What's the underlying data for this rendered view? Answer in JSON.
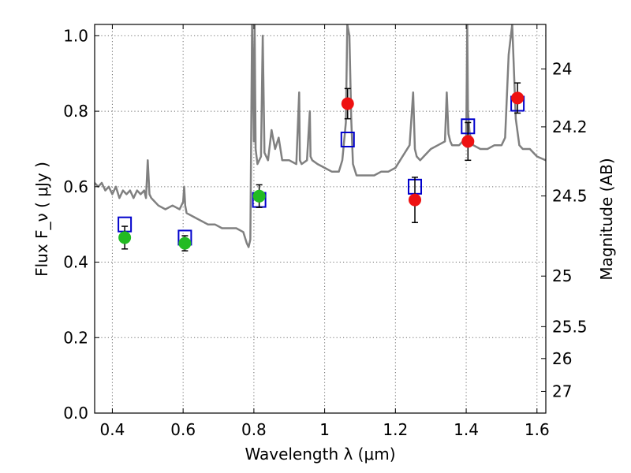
{
  "chart_data": {
    "type": "scatter",
    "title": "",
    "xlabel": "Wavelength  λ (μm)",
    "ylabel": "Flux  F_ν  ( μJy )",
    "y2label": "Magnitude (AB)",
    "xlim": [
      0.35,
      1.625
    ],
    "ylim": [
      0.0,
      1.03
    ],
    "x_ticks": [
      0.4,
      0.6,
      0.8,
      1.0,
      1.2,
      1.4,
      1.6
    ],
    "x_tick_labels": [
      "0.4",
      "0.6",
      "0.8",
      "1",
      "1.2",
      "1.4",
      "1.6"
    ],
    "y_ticks": [
      0.0,
      0.2,
      0.4,
      0.6,
      0.8,
      1.0
    ],
    "y_tick_labels": [
      "0.0",
      "0.2",
      "0.4",
      "0.6",
      "0.8",
      "1.0"
    ],
    "y2_ticks": [
      24,
      24.2,
      24.5,
      25,
      25.5,
      26,
      27
    ],
    "y2_tick_labels": [
      "24",
      "24.2",
      "24.5",
      "25",
      "25.5",
      "26",
      "27"
    ],
    "grid": true,
    "legend": "none",
    "colors": {
      "model": "#808080",
      "model_photometry": "#0000cc",
      "optical_obs": "#22bb22",
      "nir_obs": "#ee1111",
      "error_bar": "#000000"
    },
    "series": [
      {
        "kind": "line",
        "color_key": "model",
        "x": [
          0.35,
          0.36,
          0.37,
          0.38,
          0.39,
          0.4,
          0.41,
          0.42,
          0.43,
          0.44,
          0.45,
          0.46,
          0.47,
          0.48,
          0.49,
          0.495,
          0.5,
          0.505,
          0.51,
          0.53,
          0.55,
          0.57,
          0.59,
          0.6,
          0.603,
          0.606,
          0.61,
          0.63,
          0.65,
          0.67,
          0.69,
          0.71,
          0.73,
          0.75,
          0.77,
          0.78,
          0.785,
          0.79,
          0.795,
          0.8,
          0.802,
          0.805,
          0.81,
          0.82,
          0.825,
          0.83,
          0.84,
          0.85,
          0.86,
          0.87,
          0.88,
          0.9,
          0.92,
          0.928,
          0.93,
          0.935,
          0.95,
          0.958,
          0.96,
          0.965,
          0.98,
          1.0,
          1.02,
          1.04,
          1.05,
          1.06,
          1.064,
          1.07,
          1.075,
          1.08,
          1.09,
          1.1,
          1.12,
          1.14,
          1.16,
          1.18,
          1.2,
          1.22,
          1.24,
          1.25,
          1.255,
          1.26,
          1.27,
          1.28,
          1.3,
          1.32,
          1.34,
          1.345,
          1.35,
          1.355,
          1.36,
          1.38,
          1.39,
          1.4,
          1.403,
          1.405,
          1.41,
          1.42,
          1.44,
          1.46,
          1.48,
          1.5,
          1.51,
          1.52,
          1.53,
          1.54,
          1.55,
          1.56,
          1.58,
          1.6,
          1.625
        ],
        "y": [
          0.61,
          0.6,
          0.61,
          0.59,
          0.6,
          0.58,
          0.6,
          0.57,
          0.59,
          0.58,
          0.59,
          0.57,
          0.59,
          0.58,
          0.59,
          0.57,
          0.67,
          0.58,
          0.57,
          0.55,
          0.54,
          0.55,
          0.54,
          0.56,
          0.6,
          0.55,
          0.53,
          0.52,
          0.51,
          0.5,
          0.5,
          0.49,
          0.49,
          0.49,
          0.48,
          0.45,
          0.44,
          0.46,
          1.03,
          0.72,
          1.03,
          0.7,
          0.66,
          0.68,
          1.0,
          0.69,
          0.67,
          0.75,
          0.7,
          0.73,
          0.67,
          0.67,
          0.66,
          0.85,
          0.67,
          0.66,
          0.67,
          0.8,
          0.68,
          0.67,
          0.66,
          0.65,
          0.64,
          0.64,
          0.67,
          0.77,
          1.03,
          1.0,
          0.78,
          0.66,
          0.63,
          0.63,
          0.63,
          0.63,
          0.64,
          0.64,
          0.65,
          0.68,
          0.71,
          0.85,
          0.7,
          0.68,
          0.67,
          0.68,
          0.7,
          0.71,
          0.72,
          0.85,
          0.74,
          0.72,
          0.71,
          0.71,
          0.72,
          0.73,
          1.03,
          0.8,
          0.74,
          0.71,
          0.7,
          0.7,
          0.71,
          0.71,
          0.73,
          0.95,
          1.03,
          0.78,
          0.71,
          0.7,
          0.7,
          0.68,
          0.67
        ]
      },
      {
        "kind": "markers",
        "marker": "open-square",
        "color_key": "model_photometry",
        "x": [
          0.435,
          0.605,
          0.815,
          1.065,
          1.255,
          1.405,
          1.545
        ],
        "y": [
          0.5,
          0.465,
          0.565,
          0.725,
          0.6,
          0.76,
          0.82
        ]
      },
      {
        "kind": "markers",
        "marker": "filled-circle",
        "color_key": "optical_obs",
        "x": [
          0.435,
          0.605,
          0.815
        ],
        "y": [
          0.465,
          0.45,
          0.575
        ],
        "yerr": [
          0.03,
          0.02,
          0.03
        ]
      },
      {
        "kind": "markers",
        "marker": "filled-circle",
        "color_key": "nir_obs",
        "x": [
          1.065,
          1.255,
          1.405,
          1.545
        ],
        "y": [
          0.82,
          0.565,
          0.72,
          0.835
        ],
        "yerr": [
          0.04,
          0.06,
          0.05,
          0.04
        ]
      }
    ]
  }
}
